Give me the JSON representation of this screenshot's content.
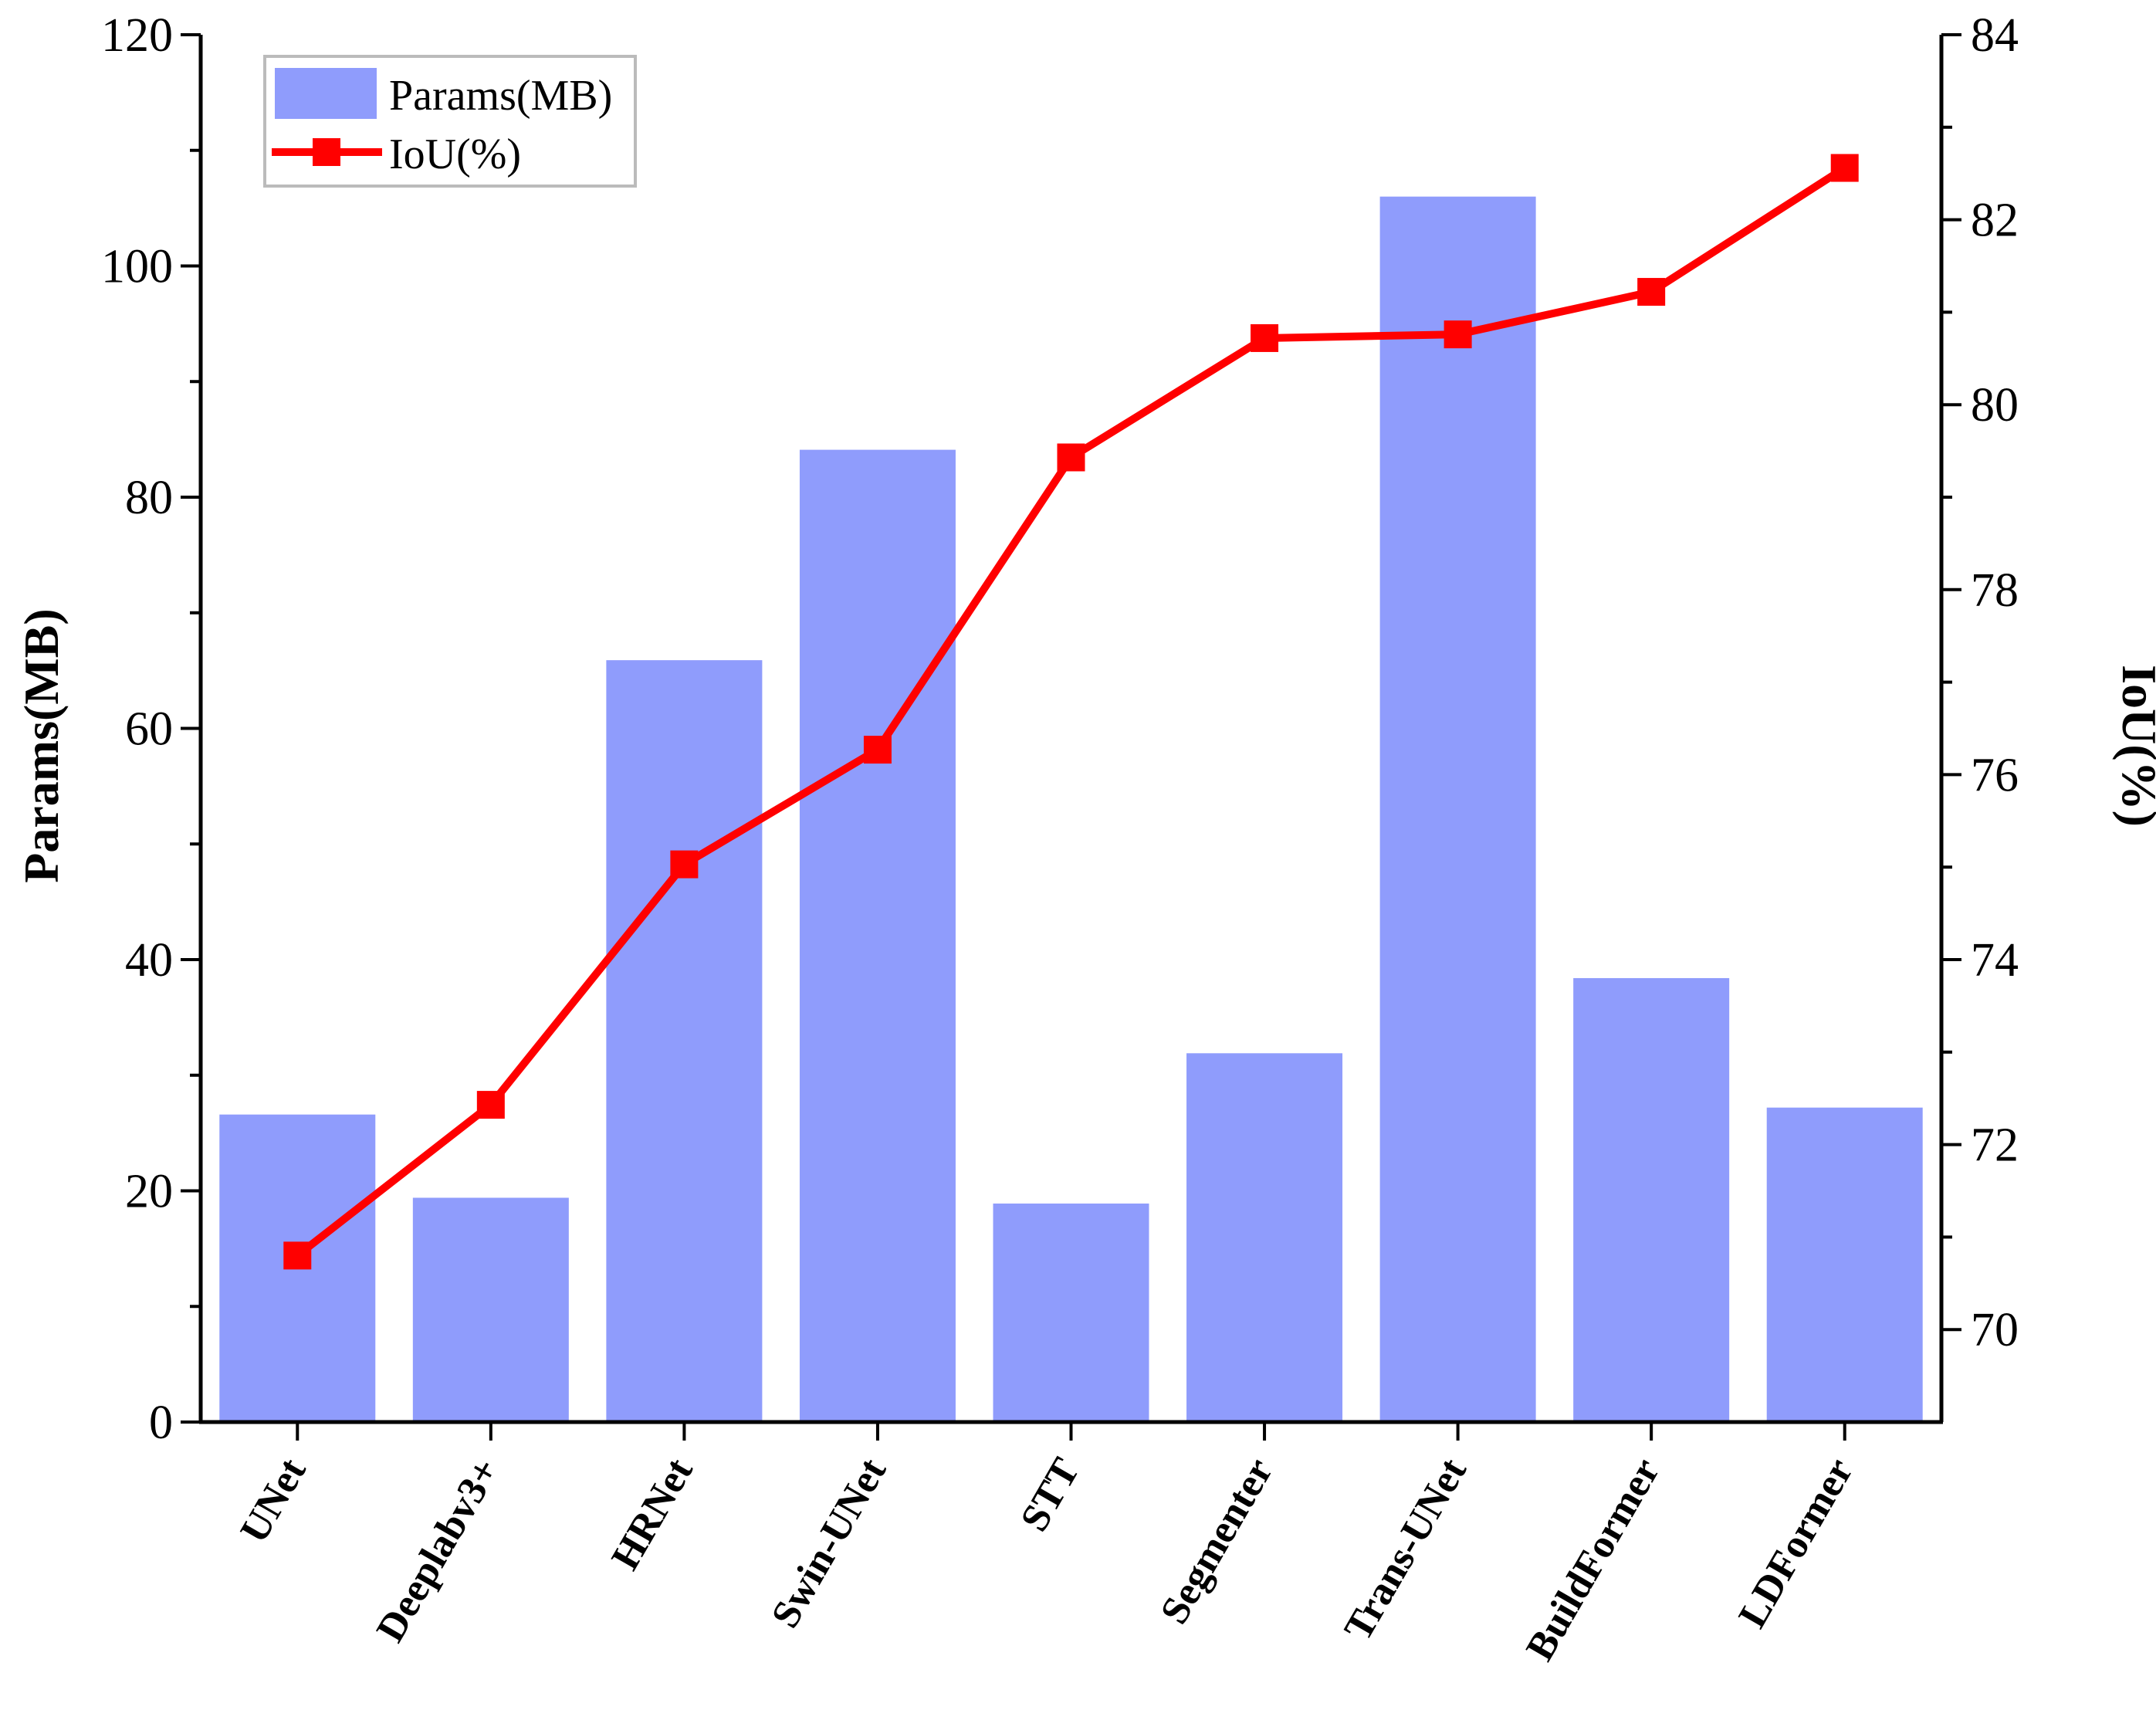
{
  "chart_data": {
    "type": "bar",
    "categories": [
      "UNet",
      "Deeplabv3+",
      "HRNet",
      "Swin-UNet",
      "STT",
      "Segmenter",
      "Trans-UNet",
      "BuildFormer",
      "LDFormer"
    ],
    "series": [
      {
        "name": "Params(MB)",
        "type": "bar",
        "axis": "left",
        "color": "#8f9cfc",
        "values": [
          26.6,
          19.4,
          65.9,
          84.1,
          18.9,
          31.9,
          106.0,
          38.4,
          27.2
        ]
      },
      {
        "name": "IoU(%)",
        "type": "line",
        "axis": "right",
        "color": "#ff0000",
        "marker": "square",
        "values": [
          70.8,
          72.43,
          75.03,
          76.27,
          79.43,
          80.72,
          80.76,
          81.22,
          82.56
        ]
      }
    ],
    "ylabel_left": "Params(MB)",
    "ylabel_right": "IoU(%)",
    "ylim_left": [
      0,
      120
    ],
    "ylim_right": [
      69,
      84
    ],
    "yticks_left": [
      "0",
      "20",
      "40",
      "60",
      "80",
      "100",
      "120"
    ],
    "yticks_right": [
      "70",
      "72",
      "74",
      "76",
      "78",
      "80",
      "82",
      "84"
    ],
    "grid": false,
    "legend_position": "top-left"
  }
}
